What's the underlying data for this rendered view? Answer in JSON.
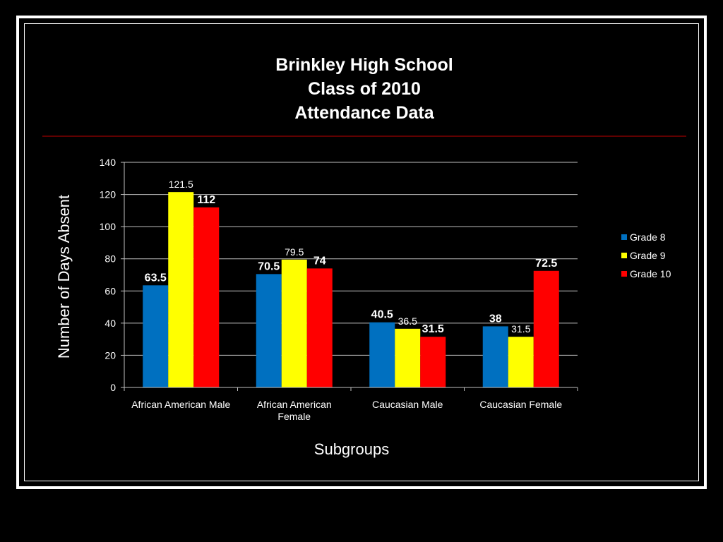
{
  "chart_data": {
    "type": "bar",
    "title": [
      "Brinkley High School",
      "Class of 2010",
      "Attendance Data"
    ],
    "xlabel": "Subgroups",
    "ylabel": "Number of Days Absent",
    "categories": [
      [
        "African American Male"
      ],
      [
        "African American",
        "Female"
      ],
      [
        "Caucasian Male"
      ],
      [
        "Caucasian Female"
      ]
    ],
    "ylim": [
      0,
      140
    ],
    "yticks": [
      0,
      20,
      40,
      60,
      80,
      100,
      120,
      140
    ],
    "grid": true,
    "legend": "right",
    "series": [
      {
        "name": "Grade 8",
        "color": "#0070C0",
        "values": [
          63.5,
          70.5,
          40.5,
          38
        ]
      },
      {
        "name": "Grade 9",
        "color": "#FFFF00",
        "values": [
          121.5,
          79.5,
          36.5,
          31.5
        ]
      },
      {
        "name": "Grade 10",
        "color": "#FF0000",
        "values": [
          112,
          74,
          31.5,
          72.5
        ]
      }
    ]
  },
  "colors": {
    "background": "#000000",
    "text": "#FFFFFF",
    "frame": "#FFFFFF",
    "divider": "#C00000",
    "grid": "#BFBFBF"
  }
}
